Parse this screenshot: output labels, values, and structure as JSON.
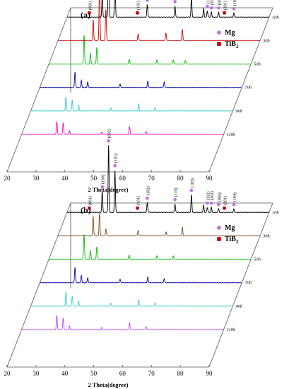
{
  "chart_data": [
    {
      "type": "line",
      "panel_label": "(a)",
      "xlabel": "2 Theta(degree)",
      "xlim": [
        20,
        90
      ],
      "x_ticks": [
        "20",
        "30",
        "40",
        "50",
        "60",
        "70",
        "80",
        "90"
      ],
      "legend": [
        {
          "name": "Mg",
          "marker": "circle",
          "color": "#c070e0"
        },
        {
          "name": "TiB",
          "subscript": "2",
          "marker": "square",
          "color": "#c00000"
        }
      ],
      "series": [
        {
          "name": "10h",
          "color": "#000000",
          "peaks": [
            [
              32.2,
              30
            ],
            [
              34.4,
              95
            ],
            [
              36.6,
              62
            ],
            [
              47.8,
              18
            ],
            [
              57.4,
              16
            ],
            [
              63.1,
              28
            ],
            [
              67.3,
              12
            ],
            [
              68.6,
              9
            ],
            [
              70.0,
              7
            ],
            [
              72.5,
              7
            ],
            [
              77.8,
              6
            ]
          ]
        },
        {
          "name": "30h",
          "color": "#cc0000",
          "peaks": [
            [
              32.2,
              30
            ],
            [
              34.4,
              85
            ],
            [
              36.6,
              45
            ],
            [
              47.8,
              10
            ],
            [
              57.4,
              11
            ],
            [
              63.1,
              16
            ]
          ]
        },
        {
          "name": "50h",
          "color": "#00bb00",
          "peaks": [
            [
              32.2,
              42
            ],
            [
              34.4,
              15
            ],
            [
              36.6,
              24
            ],
            [
              47.8,
              7
            ],
            [
              57.4,
              6
            ],
            [
              63.1,
              6
            ],
            [
              67.3,
              5
            ]
          ]
        },
        {
          "name": "70h",
          "color": "#0000aa",
          "peaks": [
            [
              32.2,
              22
            ],
            [
              34.4,
              10
            ],
            [
              36.6,
              8
            ],
            [
              47.8,
              5
            ],
            [
              57.4,
              9
            ],
            [
              63.1,
              8
            ]
          ]
        },
        {
          "name": "90h",
          "color": "#33cccc",
          "peaks": [
            [
              32.2,
              20
            ],
            [
              34.4,
              16
            ],
            [
              36.6,
              8
            ],
            [
              47.8,
              4
            ],
            [
              57.4,
              10
            ],
            [
              63.1,
              5
            ]
          ]
        },
        {
          "name": "110h",
          "color": "#ff00cc",
          "peaks": [
            [
              32.2,
              18
            ],
            [
              34.4,
              17
            ],
            [
              36.6,
              5
            ],
            [
              47.8,
              3
            ],
            [
              57.4,
              11
            ],
            [
              63.1,
              4
            ]
          ]
        }
      ],
      "annotations": [
        {
          "text": "(002)",
          "x": 34.4,
          "marker": "circle"
        },
        {
          "text": "(101)",
          "x": 36.6,
          "marker": "circle"
        },
        {
          "text": "(100)",
          "x": 32.2,
          "marker": "circle"
        },
        {
          "text": "(001)",
          "x": 27.7,
          "marker": "square"
        },
        {
          "text": "(101)",
          "x": 44.4,
          "marker": "square"
        },
        {
          "text": "(102)",
          "x": 47.8,
          "marker": "circle"
        },
        {
          "text": "(110)",
          "x": 57.4,
          "marker": "circle"
        },
        {
          "text": "(103)",
          "x": 63.1,
          "marker": "circle"
        },
        {
          "text": "(112)",
          "x": 68.6,
          "marker": "circle"
        },
        {
          "text": "(201)",
          "x": 70.0,
          "marker": "circle"
        },
        {
          "text": "(004)",
          "x": 72.5,
          "marker": "circle"
        },
        {
          "text": "(201)",
          "x": 74.5,
          "marker": "square"
        },
        {
          "text": "(104)",
          "x": 77.8,
          "marker": "circle"
        }
      ]
    },
    {
      "type": "line",
      "panel_label": "(b)",
      "xlabel": "2 Theta(degree)",
      "xlim": [
        20,
        90
      ],
      "x_ticks": [
        "20",
        "30",
        "40",
        "50",
        "60",
        "70",
        "80",
        "90"
      ],
      "legend": [
        {
          "name": "Mg",
          "marker": "circle",
          "color": "#c070e0"
        },
        {
          "name": "TiB",
          "subscript": "2",
          "marker": "square",
          "color": "#c00000"
        }
      ],
      "series": [
        {
          "name": "10h",
          "color": "#000000",
          "peaks": [
            [
              32.2,
              30
            ],
            [
              34.4,
              95
            ],
            [
              36.6,
              60
            ],
            [
              47.8,
              14
            ],
            [
              57.4,
              12
            ],
            [
              63.1,
              25
            ],
            [
              67.3,
              10
            ],
            [
              68.6,
              7
            ],
            [
              70.0,
              7
            ],
            [
              72.5,
              5
            ],
            [
              77.8,
              5
            ]
          ]
        },
        {
          "name": "30h",
          "color": "#7a4a1a",
          "peaks": [
            [
              32.2,
              28
            ],
            [
              34.4,
              32
            ],
            [
              36.6,
              10
            ],
            [
              47.8,
              8
            ],
            [
              57.4,
              6
            ],
            [
              63.1,
              12
            ]
          ]
        },
        {
          "name": "50h",
          "color": "#00bb00",
          "peaks": [
            [
              32.2,
              36
            ],
            [
              34.4,
              12
            ],
            [
              36.6,
              18
            ],
            [
              47.8,
              6
            ],
            [
              57.4,
              5
            ],
            [
              63.1,
              5
            ]
          ]
        },
        {
          "name": "70h",
          "color": "#0000aa",
          "peaks": [
            [
              32.2,
              22
            ],
            [
              34.4,
              10
            ],
            [
              36.6,
              7
            ],
            [
              47.8,
              5
            ],
            [
              57.4,
              8
            ],
            [
              63.1,
              6
            ]
          ]
        },
        {
          "name": "90h",
          "color": "#33cccc",
          "peaks": [
            [
              32.2,
              20
            ],
            [
              34.4,
              14
            ],
            [
              36.6,
              7
            ],
            [
              47.8,
              4
            ],
            [
              57.4,
              9
            ],
            [
              63.1,
              5
            ]
          ]
        },
        {
          "name": "110h",
          "color": "#bb44ee",
          "peaks": [
            [
              32.2,
              20
            ],
            [
              34.4,
              17
            ],
            [
              36.6,
              5
            ],
            [
              47.8,
              3
            ],
            [
              57.4,
              10
            ],
            [
              63.1,
              4
            ]
          ]
        }
      ],
      "annotations": [
        {
          "text": "(002)",
          "x": 34.4,
          "marker": "circle"
        },
        {
          "text": "(101)",
          "x": 36.6,
          "marker": "circle"
        },
        {
          "text": "(100)",
          "x": 32.2,
          "marker": "circle"
        },
        {
          "text": "(001)",
          "x": 27.7,
          "marker": "square"
        },
        {
          "text": "(101)",
          "x": 44.4,
          "marker": "square"
        },
        {
          "text": "(102)",
          "x": 47.8,
          "marker": "circle"
        },
        {
          "text": "(110)",
          "x": 57.4,
          "marker": "circle"
        },
        {
          "text": "(103)",
          "x": 63.1,
          "marker": "circle"
        },
        {
          "text": "(112)",
          "x": 68.6,
          "marker": "circle"
        },
        {
          "text": "(201)",
          "x": 70.0,
          "marker": "circle"
        },
        {
          "text": "(004)",
          "x": 72.5,
          "marker": "circle"
        },
        {
          "text": "(201)",
          "x": 74.5,
          "marker": "square"
        },
        {
          "text": "(104)",
          "x": 77.8,
          "marker": "circle"
        }
      ]
    }
  ]
}
